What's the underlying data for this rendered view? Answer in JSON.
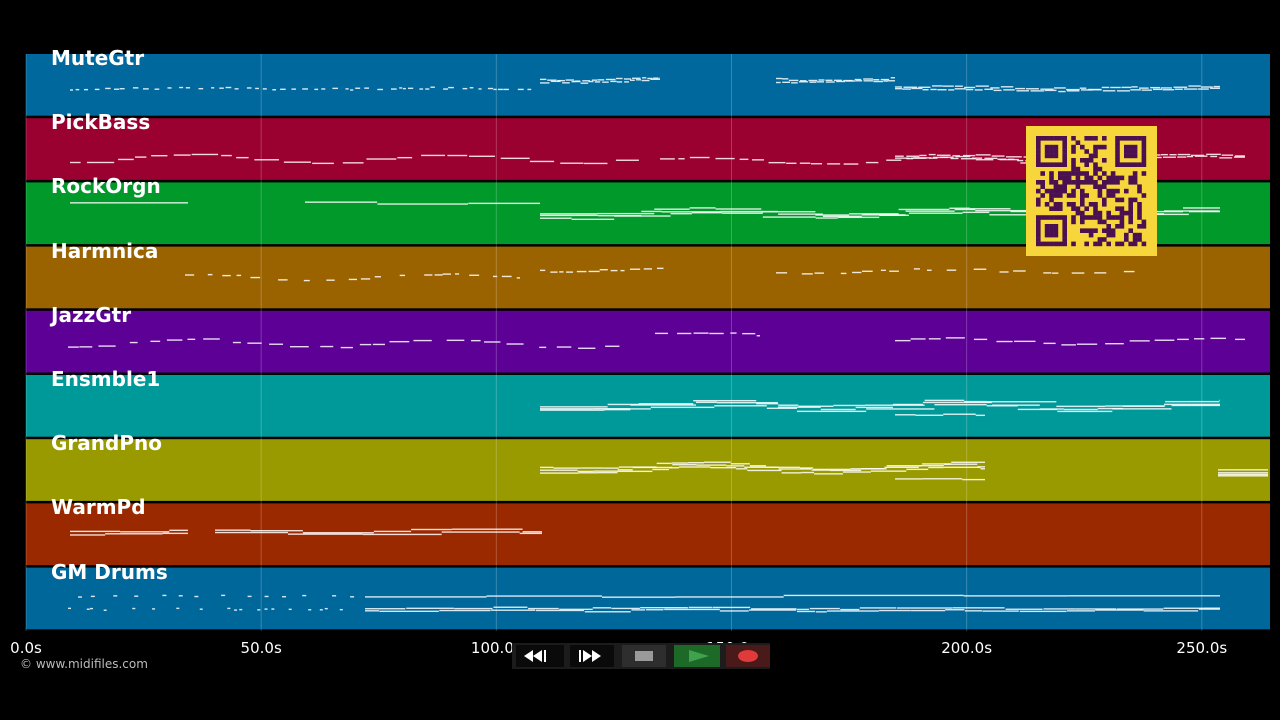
{
  "tracks": [
    {
      "name": "MuteGtr",
      "color": "#00689d"
    },
    {
      "name": "PickBass",
      "color": "#9a0030"
    },
    {
      "name": "RockOrgn",
      "color": "#00992a"
    },
    {
      "name": "Harmnica",
      "color": "#9a6300"
    },
    {
      "name": "JazzGtr",
      "color": "#5c0096"
    },
    {
      "name": "Ensmble1",
      "color": "#00999a"
    },
    {
      "name": "GrandPno",
      "color": "#999a00"
    },
    {
      "name": "WarmPd",
      "color": "#9a2900"
    },
    {
      "name": "GM Drums",
      "color": "#00679a"
    }
  ],
  "timeline": {
    "ticks": [
      "0.0s",
      "50.0s",
      "100.0s",
      "150.0s",
      "200.0s",
      "250.0s"
    ],
    "tick_seconds": [
      0,
      50,
      100,
      150,
      200,
      250
    ],
    "max_seconds": 264.5
  },
  "copyright": "© www.midifiles.com",
  "transport": {
    "rewind_icon": "rewind-icon",
    "fastforward_icon": "fast-forward-icon",
    "stop_icon": "stop-icon",
    "play_icon": "play-icon",
    "record_icon": "record-icon",
    "play_color": "#3fa34d",
    "record_color": "#e03a3a"
  },
  "qr_colors": {
    "dark": "#4a1050",
    "light": "#f6d63a"
  }
}
